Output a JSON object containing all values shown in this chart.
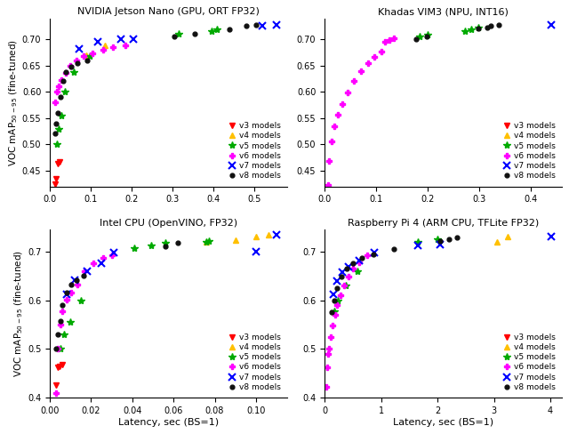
{
  "subplots": [
    {
      "title": "NVIDIA Jetson Nano (GPU, ORT FP32)",
      "series": [
        {
          "label": "v3 models",
          "color": "#ff0000",
          "marker": "v",
          "ms": 5,
          "latency": [
            0.013,
            0.016,
            0.019,
            0.024
          ],
          "map": [
            0.425,
            0.435,
            0.463,
            0.467
          ]
        },
        {
          "label": "v4 models",
          "color": "#ffc000",
          "marker": "^",
          "ms": 5,
          "latency": [
            0.09,
            0.135
          ],
          "map": [
            0.67,
            0.688
          ]
        },
        {
          "label": "v5 models",
          "color": "#00aa00",
          "marker": "*",
          "ms": 6,
          "latency": [
            0.018,
            0.022,
            0.028,
            0.036,
            0.058,
            0.098,
            0.315,
            0.395,
            0.41
          ],
          "map": [
            0.5,
            0.53,
            0.555,
            0.6,
            0.638,
            0.668,
            0.71,
            0.715,
            0.718
          ]
        },
        {
          "label": "v6 models",
          "color": "#ff00ff",
          "marker": "P",
          "ms": 5,
          "latency": [
            0.013,
            0.017,
            0.021,
            0.028,
            0.038,
            0.05,
            0.065,
            0.082,
            0.105,
            0.13,
            0.155,
            0.185
          ],
          "map": [
            0.58,
            0.6,
            0.61,
            0.622,
            0.636,
            0.65,
            0.66,
            0.668,
            0.673,
            0.68,
            0.685,
            0.688
          ]
        },
        {
          "label": "v7 models",
          "color": "#0000ff",
          "marker": "x",
          "ms": 6,
          "latency": [
            0.072,
            0.118,
            0.175,
            0.205,
            0.52,
            0.555
          ],
          "map": [
            0.682,
            0.695,
            0.7,
            0.7,
            0.725,
            0.728
          ]
        },
        {
          "label": "v8 models",
          "color": "#111111",
          "marker": "o",
          "ms": 3.5,
          "latency": [
            0.012,
            0.016,
            0.02,
            0.025,
            0.032,
            0.04,
            0.052,
            0.068,
            0.092,
            0.305,
            0.355,
            0.44,
            0.48,
            0.505
          ],
          "map": [
            0.52,
            0.54,
            0.56,
            0.59,
            0.62,
            0.638,
            0.648,
            0.655,
            0.66,
            0.705,
            0.71,
            0.718,
            0.725,
            0.728
          ]
        }
      ],
      "xlim": [
        0,
        0.58
      ],
      "ylim": [
        0.42,
        0.74
      ],
      "xticks": [
        0.0,
        0.1,
        0.2,
        0.3,
        0.4,
        0.5
      ],
      "yticks": [
        0.45,
        0.5,
        0.55,
        0.6,
        0.65,
        0.7
      ],
      "show_ylabel": true,
      "show_xlabel": false
    },
    {
      "title": "Khadas VIM3 (NPU, INT16)",
      "series": [
        {
          "label": "v3 models",
          "color": "#ff0000",
          "marker": "v",
          "ms": 5,
          "latency": [],
          "map": []
        },
        {
          "label": "v4 models",
          "color": "#ffc000",
          "marker": "^",
          "ms": 5,
          "latency": [],
          "map": []
        },
        {
          "label": "v5 models",
          "color": "#00aa00",
          "marker": "*",
          "ms": 6,
          "latency": [
            0.185,
            0.2,
            0.272,
            0.285,
            0.298
          ],
          "map": [
            0.705,
            0.708,
            0.716,
            0.718,
            0.722
          ]
        },
        {
          "label": "v6 models",
          "color": "#ff00ff",
          "marker": "P",
          "ms": 5,
          "latency": [
            0.006,
            0.009,
            0.013,
            0.019,
            0.026,
            0.034,
            0.044,
            0.057,
            0.07,
            0.084,
            0.097,
            0.11,
            0.118,
            0.126,
            0.135
          ],
          "map": [
            0.422,
            0.468,
            0.505,
            0.535,
            0.556,
            0.577,
            0.598,
            0.62,
            0.64,
            0.655,
            0.667,
            0.677,
            0.695,
            0.698,
            0.702
          ]
        },
        {
          "label": "v7 models",
          "color": "#0000ff",
          "marker": "x",
          "ms": 6,
          "latency": [
            0.44
          ],
          "map": [
            0.728
          ]
        },
        {
          "label": "v8 models",
          "color": "#111111",
          "marker": "o",
          "ms": 3.5,
          "latency": [
            0.178,
            0.198,
            0.298,
            0.315,
            0.322,
            0.338
          ],
          "map": [
            0.7,
            0.706,
            0.72,
            0.722,
            0.725,
            0.728
          ]
        }
      ],
      "xlim": [
        0,
        0.46
      ],
      "ylim": [
        0.42,
        0.74
      ],
      "xticks": [
        0.0,
        0.1,
        0.2,
        0.3,
        0.4
      ],
      "yticks": [
        0.45,
        0.5,
        0.55,
        0.6,
        0.65,
        0.7
      ],
      "show_ylabel": false,
      "show_xlabel": false
    },
    {
      "title": "Intel CPU (OpenVINO, FP32)",
      "series": [
        {
          "label": "v3 models",
          "color": "#ff0000",
          "marker": "v",
          "ms": 5,
          "latency": [
            0.003,
            0.0038,
            0.0048,
            0.006
          ],
          "map": [
            0.425,
            0.462,
            0.465,
            0.468
          ]
        },
        {
          "label": "v4 models",
          "color": "#ffc000",
          "marker": "^",
          "ms": 5,
          "latency": [
            0.076,
            0.09,
            0.1,
            0.106
          ],
          "map": [
            0.72,
            0.724,
            0.73,
            0.735
          ]
        },
        {
          "label": "v5 models",
          "color": "#00aa00",
          "marker": "*",
          "ms": 6,
          "latency": [
            0.005,
            0.007,
            0.01,
            0.015,
            0.041,
            0.049,
            0.056,
            0.076,
            0.077
          ],
          "map": [
            0.5,
            0.53,
            0.555,
            0.6,
            0.706,
            0.712,
            0.718,
            0.72,
            0.722
          ]
        },
        {
          "label": "v6 models",
          "color": "#ff00ff",
          "marker": "P",
          "ms": 5,
          "latency": [
            0.003,
            0.004,
            0.005,
            0.0062,
            0.0082,
            0.0105,
            0.0135,
            0.017,
            0.021,
            0.026,
            0.03
          ],
          "map": [
            0.41,
            0.5,
            0.55,
            0.578,
            0.601,
            0.616,
            0.632,
            0.66,
            0.675,
            0.686,
            0.692
          ]
        },
        {
          "label": "v7 models",
          "color": "#0000ff",
          "marker": "x",
          "ms": 6,
          "latency": [
            0.008,
            0.012,
            0.018,
            0.025,
            0.031,
            0.1,
            0.11
          ],
          "map": [
            0.612,
            0.642,
            0.66,
            0.675,
            0.697,
            0.7,
            0.735
          ]
        },
        {
          "label": "v8 models",
          "color": "#111111",
          "marker": "o",
          "ms": 3.5,
          "latency": [
            0.003,
            0.004,
            0.005,
            0.006,
            0.008,
            0.0102,
            0.013,
            0.0165,
            0.056,
            0.062
          ],
          "map": [
            0.5,
            0.53,
            0.558,
            0.59,
            0.615,
            0.632,
            0.641,
            0.65,
            0.71,
            0.718
          ]
        }
      ],
      "xlim": [
        0,
        0.115
      ],
      "ylim": [
        0.4,
        0.745
      ],
      "xticks": [
        0.0,
        0.02,
        0.04,
        0.06,
        0.08,
        0.1
      ],
      "yticks": [
        0.4,
        0.5,
        0.6,
        0.7
      ],
      "show_ylabel": true,
      "show_xlabel": true
    },
    {
      "title": "Raspberry Pi 4 (ARM CPU, TFLite FP32)",
      "series": [
        {
          "label": "v3 models",
          "color": "#ff0000",
          "marker": "v",
          "ms": 5,
          "latency": [],
          "map": []
        },
        {
          "label": "v4 models",
          "color": "#ffc000",
          "marker": "^",
          "ms": 5,
          "latency": [
            3.05,
            3.25
          ],
          "map": [
            0.72,
            0.73
          ]
        },
        {
          "label": "v5 models",
          "color": "#00aa00",
          "marker": "*",
          "ms": 6,
          "latency": [
            0.17,
            0.24,
            0.38,
            0.58,
            1.65,
            2.0
          ],
          "map": [
            0.578,
            0.6,
            0.63,
            0.66,
            0.72,
            0.725
          ]
        },
        {
          "label": "v6 models",
          "color": "#ff00ff",
          "marker": "P",
          "ms": 5,
          "latency": [
            0.03,
            0.045,
            0.062,
            0.082,
            0.108,
            0.14,
            0.18,
            0.225,
            0.275,
            0.34,
            0.42,
            0.51,
            0.62,
            0.76
          ],
          "map": [
            0.422,
            0.462,
            0.49,
            0.5,
            0.524,
            0.548,
            0.57,
            0.59,
            0.61,
            0.63,
            0.648,
            0.665,
            0.678,
            0.692
          ]
        },
        {
          "label": "v7 models",
          "color": "#0000ff",
          "marker": "x",
          "ms": 6,
          "latency": [
            0.155,
            0.22,
            0.32,
            0.43,
            0.62,
            0.88,
            1.65,
            2.05,
            4.02
          ],
          "map": [
            0.612,
            0.64,
            0.657,
            0.668,
            0.682,
            0.697,
            0.712,
            0.715,
            0.73
          ]
        },
        {
          "label": "v8 models",
          "color": "#111111",
          "marker": "o",
          "ms": 3.5,
          "latency": [
            0.12,
            0.165,
            0.22,
            0.295,
            0.39,
            0.505,
            0.665,
            0.87,
            1.22,
            2.05,
            2.2,
            2.35
          ],
          "map": [
            0.575,
            0.6,
            0.625,
            0.648,
            0.664,
            0.676,
            0.686,
            0.695,
            0.705,
            0.722,
            0.725,
            0.728
          ]
        }
      ],
      "xlim": [
        0,
        4.2
      ],
      "ylim": [
        0.4,
        0.745
      ],
      "xticks": [
        0,
        1,
        2,
        3,
        4
      ],
      "yticks": [
        0.4,
        0.5,
        0.6,
        0.7
      ],
      "show_ylabel": false,
      "show_xlabel": true
    }
  ],
  "ylabel": "VOC mAP$_{50-95}$ (fine-tuned)",
  "xlabel": "Latency, sec (BS=1)",
  "figure_bg": "#ffffff"
}
